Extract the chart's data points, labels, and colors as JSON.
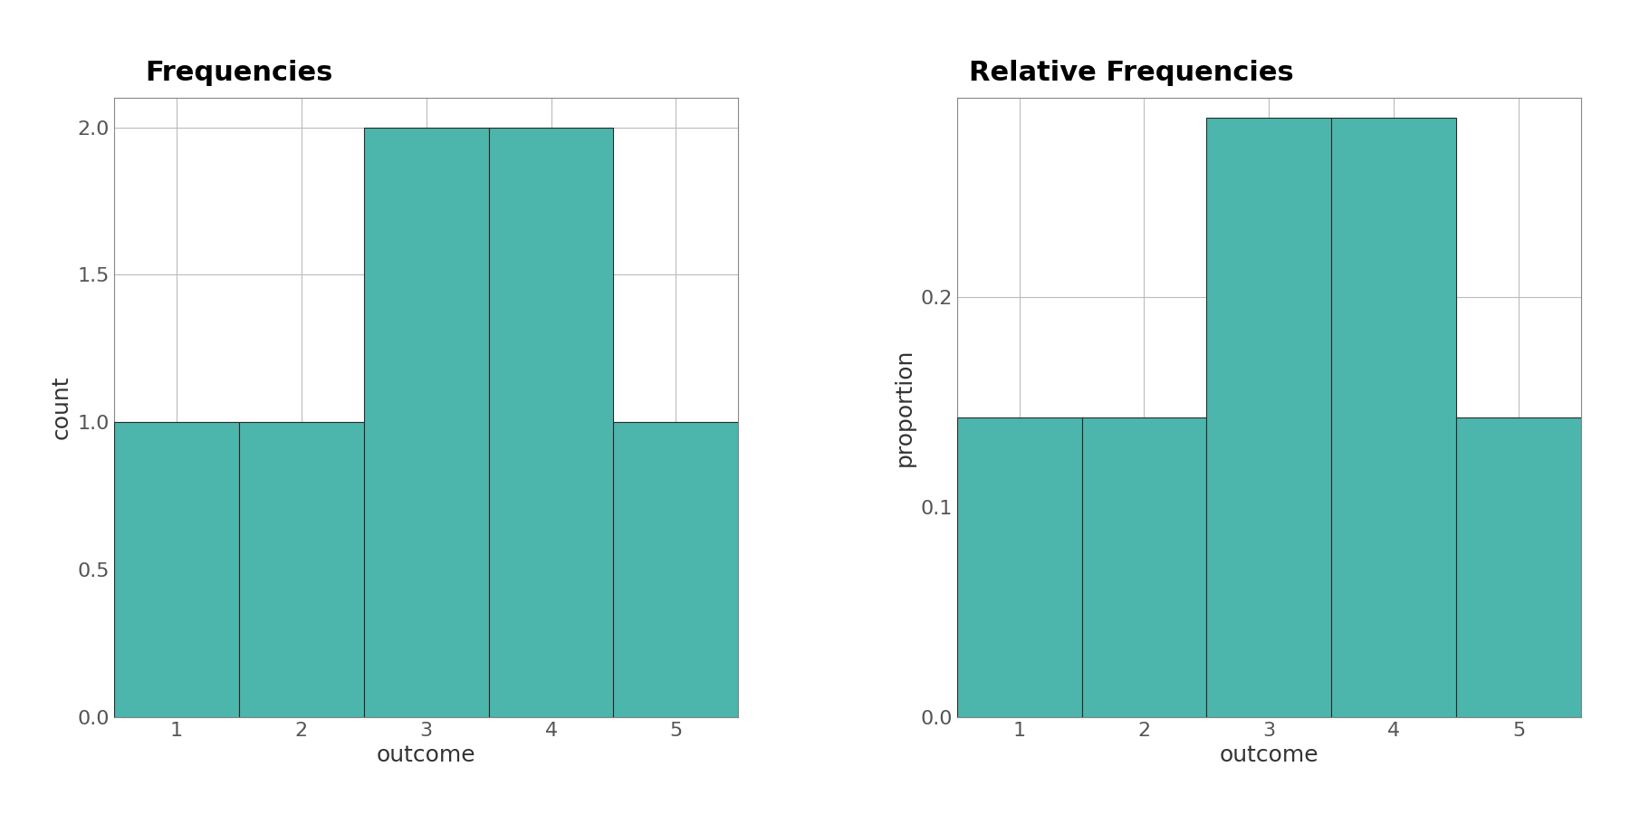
{
  "bin_edges": [
    0.5,
    1.5,
    2.5,
    3.5,
    4.5,
    5.5
  ],
  "counts": [
    1,
    1,
    2,
    2,
    1
  ],
  "n_total": 7,
  "bar_color": "#4DB6AC",
  "bar_edgecolor": "#2a2a2a",
  "title_left": "Frequencies",
  "title_right": "Relative Frequencies",
  "xlabel": "outcome",
  "ylabel_left": "count",
  "ylabel_right": "proportion",
  "xlim": [
    0.5,
    5.5
  ],
  "ylim_left": [
    0.0,
    2.1
  ],
  "ylim_right": [
    0.0,
    0.295
  ],
  "xticks": [
    1,
    2,
    3,
    4,
    5
  ],
  "yticks_left": [
    0.0,
    0.5,
    1.0,
    1.5,
    2.0
  ],
  "yticks_right": [
    0.0,
    0.1,
    0.2
  ],
  "title_fontsize": 22,
  "label_fontsize": 18,
  "tick_fontsize": 16,
  "background_color": "#ffffff",
  "grid_color": "#bbbbbb",
  "title_fontweight": "bold",
  "bar_linewidth": 0.8,
  "spine_color": "#888888"
}
